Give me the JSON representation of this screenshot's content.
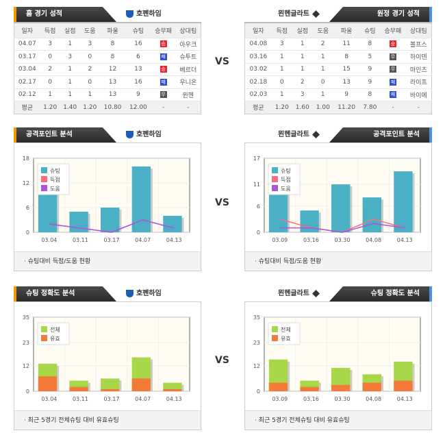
{
  "home": {
    "tab": "홈 경기 성적",
    "team": "호펜하임",
    "headers": [
      "일자",
      "득점",
      "실점",
      "도움",
      "파울",
      "슈팅",
      "승무패",
      "상대팀"
    ],
    "rows": [
      [
        "04.07",
        "3",
        "1",
        "3",
        "8",
        "16",
        "승",
        "아우크"
      ],
      [
        "03.17",
        "0",
        "3",
        "0",
        "8",
        "6",
        "패",
        "슈투트"
      ],
      [
        "03.04",
        "2",
        "1",
        "2",
        "12",
        "13",
        "승",
        "베르더"
      ],
      [
        "02.17",
        "0",
        "1",
        "0",
        "13",
        "16",
        "패",
        "우니온"
      ],
      [
        "02.12",
        "1",
        "1",
        "1",
        "13",
        "9",
        "무",
        "뮌헨"
      ]
    ],
    "avg": [
      "평균",
      "1.20",
      "1.40",
      "1.20",
      "10.80",
      "12.00",
      "-",
      "-"
    ]
  },
  "away": {
    "tab": "원정 경기 성적",
    "team": "묀헨글라트",
    "headers": [
      "일자",
      "득점",
      "실점",
      "도움",
      "파울",
      "슈팅",
      "승무패",
      "상대팀"
    ],
    "rows": [
      [
        "04.08",
        "3",
        "1",
        "2",
        "11",
        "8",
        "승",
        "볼프스"
      ],
      [
        "03.16",
        "1",
        "1",
        "1",
        "8",
        "5",
        "무",
        "하이덴"
      ],
      [
        "03.02",
        "1",
        "1",
        "1",
        "15",
        "9",
        "무",
        "마인츠"
      ],
      [
        "02.18",
        "0",
        "2",
        "0",
        "13",
        "9",
        "패",
        "라이프"
      ],
      [
        "02.03",
        "1",
        "3",
        "1",
        "9",
        "8",
        "패",
        "바이에"
      ]
    ],
    "avg": [
      "평균",
      "1.20",
      "1.60",
      "1.00",
      "11.20",
      "7.80",
      "-",
      "-"
    ]
  },
  "vs": "VS",
  "result_colors": {
    "승": "#e8262d",
    "패": "#2f4fd8",
    "무": "#555555"
  },
  "attack_tab": "공격포인트 분석",
  "accuracy_tab": "슈팅 정확도 분석",
  "chart_data": [
    {
      "id": "home-attack",
      "type": "bar+line",
      "categories": [
        "03.04",
        "03.11",
        "03.17",
        "04.07",
        "04.13"
      ],
      "ylim": [
        0,
        18
      ],
      "yticks": [
        0,
        6,
        12,
        18
      ],
      "series": [
        {
          "name": "슈팅",
          "type": "bar",
          "color": "#4ab0c6",
          "values": [
            13,
            5,
            6,
            16,
            4
          ]
        },
        {
          "name": "득점",
          "type": "line",
          "color": "#ff6b7a",
          "values": [
            2,
            1,
            0,
            3,
            1
          ]
        },
        {
          "name": "도움",
          "type": "line",
          "color": "#aa55dd",
          "values": [
            2,
            1,
            0,
            3,
            1
          ]
        }
      ],
      "caption": "슈팅대비 득점/도움 현황"
    },
    {
      "id": "away-attack",
      "type": "bar+line",
      "categories": [
        "03.09",
        "03.16",
        "03.30",
        "04.08",
        "04.13"
      ],
      "ylim": [
        0,
        17
      ],
      "yticks": [
        0,
        6,
        11,
        17
      ],
      "series": [
        {
          "name": "슈팅",
          "type": "bar",
          "color": "#4ab0c6",
          "values": [
            15,
            5,
            11,
            8,
            14
          ]
        },
        {
          "name": "득점",
          "type": "line",
          "color": "#ff6b7a",
          "values": [
            3,
            1,
            0,
            3,
            1
          ]
        },
        {
          "name": "도움",
          "type": "line",
          "color": "#aa55dd",
          "values": [
            1,
            1,
            0,
            2,
            1
          ]
        }
      ],
      "caption": "슈팅대비 득점/도움 현황"
    },
    {
      "id": "home-accuracy",
      "type": "bar-overlay",
      "categories": [
        "03.04",
        "03.11",
        "03.17",
        "04.07",
        "04.13"
      ],
      "ylim": [
        0,
        35
      ],
      "yticks": [
        0,
        12,
        23,
        35
      ],
      "series": [
        {
          "name": "전체",
          "type": "bar",
          "color": "#a8d84a",
          "values": [
            13,
            5,
            6,
            16,
            4
          ]
        },
        {
          "name": "유효",
          "type": "bar",
          "color": "#f47a3a",
          "values": [
            7,
            2,
            1,
            6,
            1
          ]
        }
      ],
      "caption": "최근 5경기 전체슈팅 대비 유효슈팅"
    },
    {
      "id": "away-accuracy",
      "type": "bar-overlay",
      "categories": [
        "03.09",
        "03.16",
        "03.30",
        "04.08",
        "04.13"
      ],
      "ylim": [
        0,
        35
      ],
      "yticks": [
        0,
        12,
        23,
        35
      ],
      "series": [
        {
          "name": "전체",
          "type": "bar",
          "color": "#a8d84a",
          "values": [
            15,
            5,
            11,
            8,
            14
          ]
        },
        {
          "name": "유효",
          "type": "bar",
          "color": "#f47a3a",
          "values": [
            4,
            2,
            3,
            4,
            5
          ]
        }
      ],
      "caption": "최근 5경기 전체슈팅 대비 유효슈팅"
    }
  ]
}
